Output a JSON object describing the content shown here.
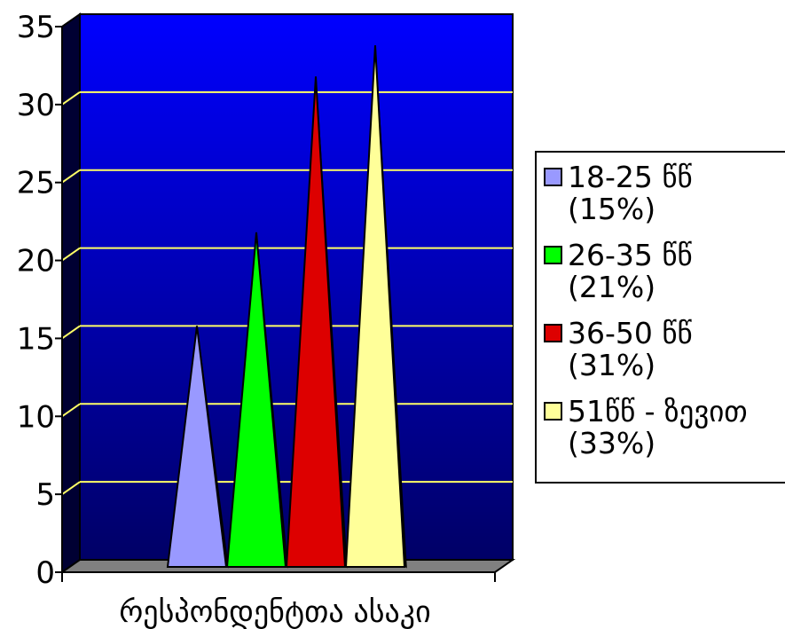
{
  "chart_data": {
    "type": "bar",
    "bar_shape": "cone-3d",
    "title": "",
    "xlabel": "",
    "ylabel": "",
    "categories": [
      "რესპონდენტთა ასაკი"
    ],
    "ylim": [
      0,
      35
    ],
    "yticks": [
      "0",
      "5",
      "10",
      "15",
      "20",
      "25",
      "30",
      "35"
    ],
    "grid": true,
    "legend_position": "right",
    "plot_background": "#0000cc",
    "floor_color": "#808080",
    "gridline_color": "#ffff66",
    "series": [
      {
        "name": "18-25 წწ (15%)",
        "line1": "18-25 წწ",
        "line2": "(15%)",
        "values": [
          15
        ],
        "color": "#9999ff"
      },
      {
        "name": "26-35 წწ (21%)",
        "line1": "26-35 წწ",
        "line2": "(21%)",
        "values": [
          21
        ],
        "color": "#00ff00"
      },
      {
        "name": "36-50 წწ (31%)",
        "line1": "36-50 წწ",
        "line2": "(31%)",
        "values": [
          31
        ],
        "color": "#dd0000"
      },
      {
        "name": "51წწ - ზევით (33%)",
        "line1": "51წწ - ზევით",
        "line2": "(33%)",
        "values": [
          33
        ],
        "color": "#ffff99"
      }
    ]
  }
}
